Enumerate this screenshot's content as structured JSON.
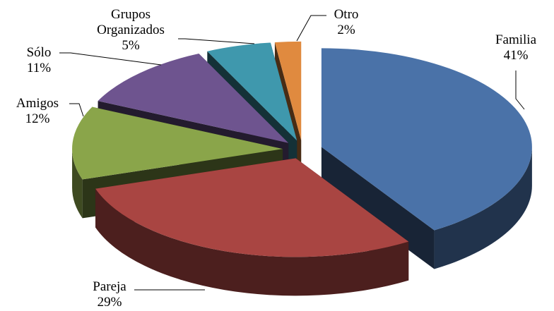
{
  "chart_data": {
    "type": "pie3d",
    "categories": [
      "Familia",
      "Pareja",
      "Amigos",
      "Sólo",
      "Grupos Organizados",
      "Otro"
    ],
    "values": [
      41,
      29,
      12,
      11,
      5,
      2
    ],
    "value_labels": [
      "41%",
      "29%",
      "12%",
      "11%",
      "5%",
      "2%"
    ],
    "colors": [
      "#4a72a8",
      "#a94542",
      "#8aa54a",
      "#6e548f",
      "#3f98ad",
      "#e08a3f"
    ]
  }
}
